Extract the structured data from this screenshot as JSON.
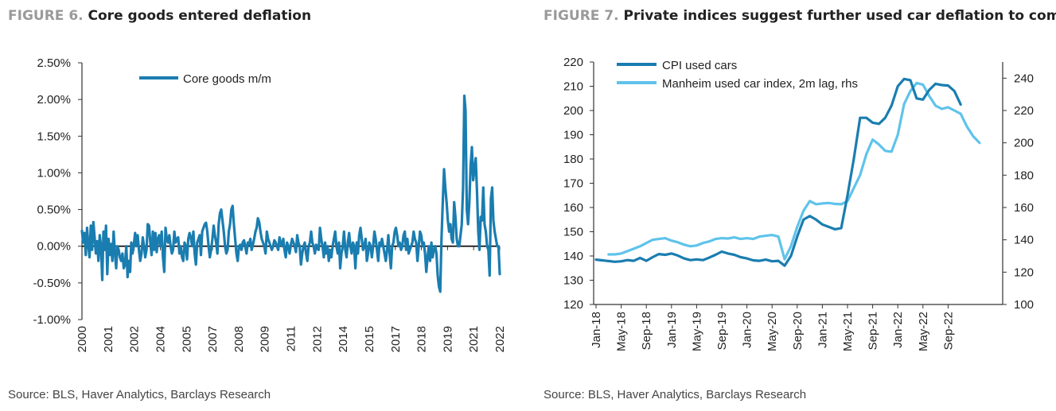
{
  "figures": [
    {
      "number": "FIGURE 6.",
      "title": "Core goods entered deflation",
      "source": "Source: BLS, Haver Analytics, Barclays Research"
    },
    {
      "number": "FIGURE 7.",
      "title": "Private indices suggest further used car deflation to come",
      "source": "Source: BLS, Haver Analytics, Barclays Research"
    }
  ],
  "colors": {
    "dark_blue": "#1a7db0",
    "light_blue": "#5fc3ea",
    "axis": "#333333"
  },
  "chart_data": [
    {
      "type": "line",
      "title": "Core goods entered deflation",
      "x_start": "2000-01",
      "x_end": "2022-12",
      "xticks": [
        "2000",
        "2001",
        "2002",
        "2004",
        "2005",
        "2007",
        "2008",
        "2009",
        "2011",
        "2012",
        "2014",
        "2015",
        "2017",
        "2018",
        "2019",
        "2021",
        "2022"
      ],
      "yticks": [
        "-1.00%",
        "-0.50%",
        "0.00%",
        "0.50%",
        "1.00%",
        "1.50%",
        "2.00%",
        "2.50%"
      ],
      "ylim": [
        -1.0,
        2.5
      ],
      "legend_position": "top",
      "series": [
        {
          "name": "Core goods m/m",
          "color": "#1a7db0",
          "values": [
            0.21,
            0.05,
            0.18,
            -0.12,
            0.25,
            0.02,
            -0.15,
            0.28,
            -0.05,
            0.33,
            0.12,
            -0.1,
            0.07,
            -0.2,
            0.15,
            0.0,
            -0.46,
            0.2,
            -0.05,
            0.28,
            -0.38,
            0.1,
            -0.12,
            0.03,
            -0.2,
            0.2,
            -0.1,
            -0.3,
            0.0,
            -0.05,
            -0.15,
            -0.2,
            -0.1,
            -0.3,
            -0.25,
            0.0,
            -0.42,
            -0.2,
            -0.35,
            0.05,
            -0.1,
            0.02,
            0.18,
            0.0,
            0.15,
            -0.05,
            -0.2,
            -0.1,
            0.12,
            0.0,
            -0.15,
            -0.05,
            0.3,
            0.28,
            0.05,
            -0.12,
            0.2,
            -0.05,
            0.18,
            -0.08,
            0.1,
            0.15,
            0.0,
            0.2,
            -0.15,
            -0.35,
            0.25,
            0.1,
            0.05,
            0.15,
            0.0,
            -0.1,
            -0.05,
            0.2,
            0.05,
            0.1,
            0.12,
            -0.1,
            0.0,
            -0.15,
            -0.2,
            0.05,
            0.0,
            -0.18,
            0.1,
            0.18,
            0.12,
            0.0,
            0.2,
            -0.1,
            -0.25,
            0.05,
            0.1,
            0.15,
            -0.12,
            0.2,
            0.25,
            0.3,
            0.32,
            0.2,
            0.0,
            -0.15,
            -0.05,
            0.1,
            0.28,
            0.15,
            0.05,
            -0.1,
            0.3,
            0.45,
            0.5,
            0.35,
            0.2,
            0.0,
            -0.1,
            -0.05,
            0.2,
            0.3,
            0.5,
            0.55,
            0.3,
            0.1,
            -0.1,
            -0.2,
            0.0,
            0.02,
            -0.05,
            0.05,
            0.08,
            0.0,
            -0.1,
            0.05,
            0.02,
            0.1,
            -0.05,
            0.02,
            0.1,
            0.2,
            0.25,
            0.38,
            0.33,
            0.2,
            0.1,
            0.05,
            0.0,
            -0.1,
            0.2,
            0.1,
            0.05,
            0.0,
            -0.05,
            0.0,
            0.08,
            0.05,
            0.0,
            -0.05,
            0.12,
            0.05,
            0.0,
            0.1,
            -0.05,
            -0.15,
            0.05,
            0.0,
            -0.1,
            0.02,
            0.1,
            0.05,
            0.0,
            -0.08,
            0.15,
            0.05,
            0.0,
            -0.25,
            -0.1,
            0.0,
            0.05,
            -0.1,
            -0.2,
            0.0,
            0.05,
            0.2,
            0.05,
            0.0,
            -0.1,
            0.02,
            0.0,
            -0.05,
            0.25,
            0.1,
            0.0,
            -0.15,
            0.05,
            -0.1,
            0.0,
            -0.2,
            -0.05,
            -0.15,
            0.0,
            0.1,
            0.2,
            0.0,
            -0.1,
            0.05,
            -0.3,
            -0.1,
            0.0,
            0.2,
            -0.05,
            -0.15,
            0.05,
            0.18,
            0.0,
            -0.1,
            0.05,
            0.0,
            -0.3,
            0.05,
            -0.1,
            0.15,
            0.25,
            0.1,
            -0.05,
            0.0,
            0.1,
            -0.2,
            -0.1,
            0.05,
            0.0,
            -0.15,
            0.0,
            0.2,
            0.1,
            -0.05,
            -0.2,
            0.05,
            0.0,
            0.1,
            0.0,
            -0.1,
            -0.2,
            -0.05,
            0.15,
            -0.1,
            -0.3,
            0.0,
            0.05,
            0.2,
            0.25,
            0.15,
            0.0,
            0.05,
            -0.05,
            0.0,
            0.15,
            0.2,
            -0.05,
            0.1,
            -0.1,
            -0.05,
            0.0,
            0.05,
            0.2,
            0.1,
            0.05,
            -0.2,
            0.0,
            0.2,
            0.15,
            0.0,
            0.05,
            -0.1,
            -0.35,
            -0.15,
            0.0,
            -0.2,
            0.05,
            -0.15,
            -0.05,
            0.0,
            -0.1,
            -0.4,
            -0.55,
            -0.62,
            0.1,
            0.6,
            1.05,
            0.8,
            0.6,
            0.35,
            0.2,
            0.3,
            0.1,
            0.05,
            0.6,
            0.4,
            0.1,
            0.0,
            0.0,
            0.15,
            0.3,
            0.8,
            2.05,
            1.85,
            0.5,
            0.3,
            0.6,
            1.1,
            1.35,
            0.9,
            1.05,
            1.2,
            0.75,
            0.2,
            -0.05,
            0.4,
            0.35,
            0.8,
            0.3,
            0.2,
            0.0,
            -0.05,
            -0.4,
            0.65,
            0.8,
            0.35,
            0.2,
            0.1,
            0.0,
            0.0,
            -0.38
          ]
        }
      ]
    },
    {
      "type": "line",
      "title": "Private indices suggest further used car deflation to come",
      "xticks": [
        "Jan-18",
        "May-18",
        "Sep-18",
        "Jan-19",
        "May-19",
        "Sep-19",
        "Jan-20",
        "May-20",
        "Sep-20",
        "Jan-21",
        "May-21",
        "Sep-21",
        "Jan-22",
        "May-22",
        "Sep-22"
      ],
      "ylim_left": [
        120,
        220
      ],
      "yticks_left": [
        "120",
        "130",
        "140",
        "150",
        "160",
        "170",
        "180",
        "190",
        "200",
        "210",
        "220"
      ],
      "ylim_right": [
        100,
        250
      ],
      "yticks_right": [
        "100",
        "120",
        "140",
        "160",
        "180",
        "200",
        "220",
        "240"
      ],
      "legend_position": "top-left",
      "series": [
        {
          "name": "CPI used cars",
          "axis": "left",
          "color": "#1a7db0",
          "values": [
            138.5,
            138.2,
            137.9,
            137.6,
            137.8,
            138.3,
            138.0,
            139.2,
            138.0,
            139.5,
            140.8,
            140.5,
            141.0,
            140.2,
            139.0,
            138.3,
            138.6,
            138.3,
            139.3,
            140.5,
            141.8,
            141.0,
            140.5,
            139.5,
            139.0,
            138.2,
            138.0,
            138.5,
            137.8,
            138.0,
            136.0,
            140.0,
            148.0,
            155.0,
            156.5,
            155.0,
            153.0,
            152.0,
            151.0,
            151.5,
            165.0,
            180.0,
            197.0,
            197.0,
            195.0,
            194.5,
            197.0,
            202.0,
            210.0,
            213.0,
            212.5,
            205.0,
            204.5,
            208.5,
            211.0,
            210.5,
            210.3,
            208.0,
            202.5
          ]
        },
        {
          "name": "Manheim used car index, 2m lag, rhs",
          "axis": "right",
          "color": "#5fc3ea",
          "values": [
            null,
            null,
            131.0,
            131.0,
            131.5,
            133.0,
            134.5,
            136.0,
            138.0,
            140.0,
            140.5,
            141.0,
            139.5,
            138.5,
            137.0,
            136.0,
            136.5,
            138.0,
            139.0,
            140.5,
            141.0,
            140.8,
            141.5,
            140.5,
            141.0,
            140.5,
            142.0,
            142.5,
            143.0,
            142.0,
            128.0,
            136.0,
            148.0,
            158.0,
            164.0,
            162.0,
            162.5,
            162.8,
            162.2,
            162.0,
            164.0,
            172.0,
            180.0,
            193.0,
            202.0,
            199.0,
            195.0,
            194.5,
            205.0,
            224.0,
            232.0,
            237.0,
            236.0,
            229.0,
            223.0,
            221.0,
            222.0,
            220.0,
            218.0,
            210.0,
            204.0,
            200.0
          ]
        }
      ]
    }
  ]
}
